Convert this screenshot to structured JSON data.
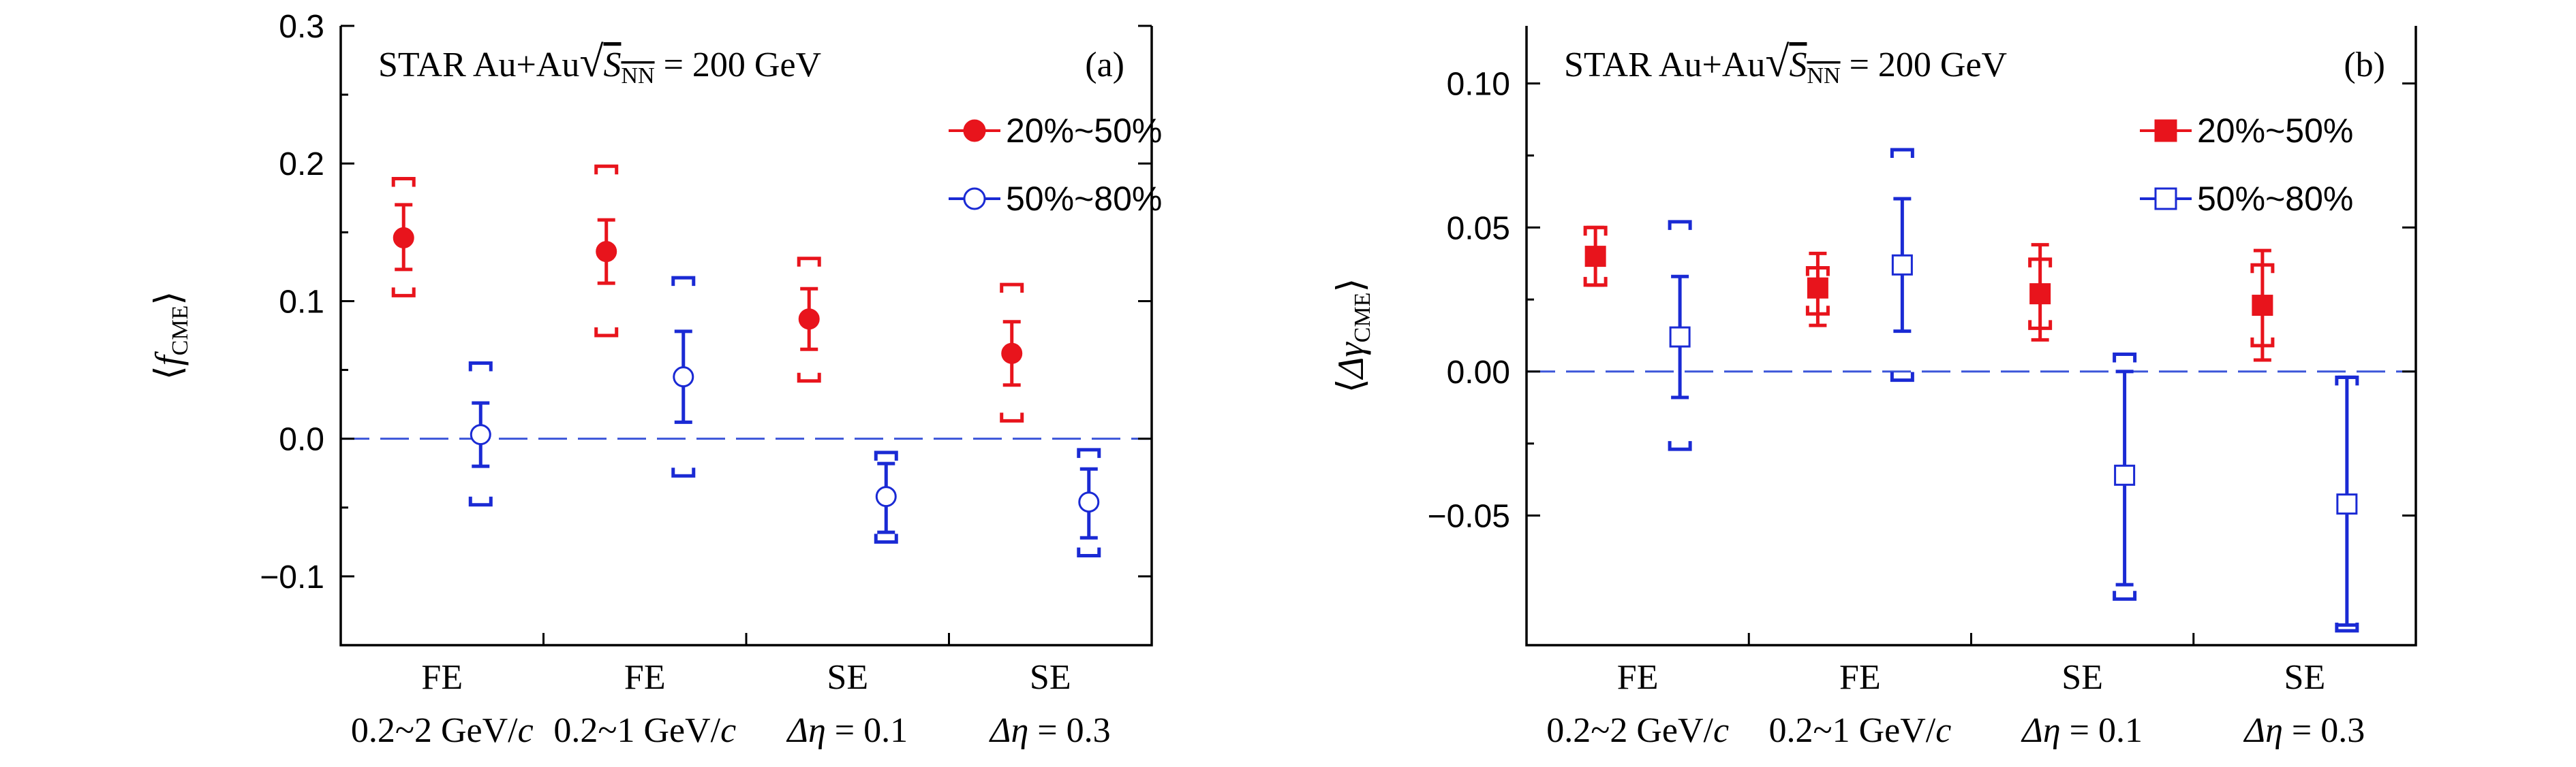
{
  "chart_data": [
    {
      "type": "scatter",
      "panel": "(a)",
      "annotation": {
        "prefix": "STAR Au+Au",
        "sqrt_symbol": "√",
        "var": "S",
        "sub": "NN",
        "suffix": " = 200 GeV"
      },
      "ylabel": {
        "left": "⟨",
        "var": "f",
        "sub": "CME",
        "right": "⟩"
      },
      "ylim": [
        -0.15,
        0.3
      ],
      "yticks": [
        {
          "v": -0.1,
          "label": "−0.1"
        },
        {
          "v": 0.0,
          "label": "0.0"
        },
        {
          "v": 0.1,
          "label": "0.1"
        },
        {
          "v": 0.2,
          "label": "0.2"
        },
        {
          "v": 0.3,
          "label": "0.3"
        }
      ],
      "categories": [
        {
          "line1": "FE",
          "line2_pre": "0.2~2 GeV/",
          "line2_it": "c",
          "line2_post": ""
        },
        {
          "line1": "FE",
          "line2_pre": "0.2~1 GeV/",
          "line2_it": "c",
          "line2_post": ""
        },
        {
          "line1": "SE",
          "line2_pre": "",
          "line2_it": "Δη",
          "line2_post": " = 0.1"
        },
        {
          "line1": "SE",
          "line2_pre": "",
          "line2_it": "Δη",
          "line2_post": " = 0.3"
        }
      ],
      "reference_line": 0.0,
      "legend_position": "top-right",
      "series": [
        {
          "name": "20%~50%",
          "color": "#e8141c",
          "marker": "filled-circle",
          "points": [
            {
              "y": 0.146,
              "stat": [
                0.123,
                0.17
              ],
              "sys": [
                0.104,
                0.189
              ]
            },
            {
              "y": 0.136,
              "stat": [
                0.113,
                0.159
              ],
              "sys": [
                0.075,
                0.198
              ]
            },
            {
              "y": 0.087,
              "stat": [
                0.065,
                0.109
              ],
              "sys": [
                0.042,
                0.131
              ]
            },
            {
              "y": 0.062,
              "stat": [
                0.039,
                0.085
              ],
              "sys": [
                0.013,
                0.112
              ]
            }
          ]
        },
        {
          "name": "50%~80%",
          "color": "#1a2ad4",
          "marker": "open-circle",
          "points": [
            {
              "y": 0.003,
              "stat": [
                -0.02,
                0.026
              ],
              "sys": [
                -0.048,
                0.055
              ]
            },
            {
              "y": 0.045,
              "stat": [
                0.012,
                0.078
              ],
              "sys": [
                -0.027,
                0.117
              ]
            },
            {
              "y": -0.042,
              "stat": [
                -0.068,
                -0.018
              ],
              "sys": [
                -0.075,
                -0.01
              ]
            },
            {
              "y": -0.046,
              "stat": [
                -0.072,
                -0.022
              ],
              "sys": [
                -0.085,
                -0.008
              ]
            }
          ]
        }
      ]
    },
    {
      "type": "scatter",
      "panel": "(b)",
      "annotation": {
        "prefix": "STAR Au+Au",
        "sqrt_symbol": "√",
        "var": "S",
        "sub": "NN",
        "suffix": " = 200 GeV"
      },
      "ylabel": {
        "left": "⟨",
        "var": "Δγ",
        "sub": "CME",
        "right": "⟩"
      },
      "ylim": [
        -0.095,
        0.12
      ],
      "yticks": [
        {
          "v": -0.05,
          "label": "−0.05"
        },
        {
          "v": 0.0,
          "label": "0.00"
        },
        {
          "v": 0.05,
          "label": "0.05"
        },
        {
          "v": 0.1,
          "label": "0.10"
        }
      ],
      "categories": [
        {
          "line1": "FE",
          "line2_pre": "0.2~2 GeV/",
          "line2_it": "c",
          "line2_post": ""
        },
        {
          "line1": "FE",
          "line2_pre": "0.2~1 GeV/",
          "line2_it": "c",
          "line2_post": ""
        },
        {
          "line1": "SE",
          "line2_pre": "",
          "line2_it": "Δη",
          "line2_post": " = 0.1"
        },
        {
          "line1": "SE",
          "line2_pre": "",
          "line2_it": "Δη",
          "line2_post": " = 0.3"
        }
      ],
      "reference_line": 0.0,
      "legend_position": "top-right",
      "series": [
        {
          "name": "20%~50%",
          "color": "#e8141c",
          "marker": "filled-square",
          "points": [
            {
              "y": 0.04,
              "stat": [
                0.03,
                0.05
              ],
              "sys": [
                0.03,
                0.05
              ]
            },
            {
              "y": 0.029,
              "stat": [
                0.016,
                0.041
              ],
              "sys": [
                0.02,
                0.036
              ]
            },
            {
              "y": 0.027,
              "stat": [
                0.011,
                0.044
              ],
              "sys": [
                0.015,
                0.039
              ]
            },
            {
              "y": 0.023,
              "stat": [
                0.004,
                0.042
              ],
              "sys": [
                0.009,
                0.037
              ]
            }
          ]
        },
        {
          "name": "50%~80%",
          "color": "#1a2ad4",
          "marker": "open-square",
          "points": [
            {
              "y": 0.012,
              "stat": [
                -0.009,
                0.033
              ],
              "sys": [
                -0.027,
                0.052
              ]
            },
            {
              "y": 0.037,
              "stat": [
                0.014,
                0.06
              ],
              "sys": [
                -0.003,
                0.077
              ]
            },
            {
              "y": -0.036,
              "stat": [
                -0.074,
                0.0
              ],
              "sys": [
                -0.079,
                0.006
              ]
            },
            {
              "y": -0.046,
              "stat": [
                -0.088,
                -0.002
              ],
              "sys": [
                -0.09,
                -0.002
              ]
            }
          ]
        }
      ]
    }
  ]
}
